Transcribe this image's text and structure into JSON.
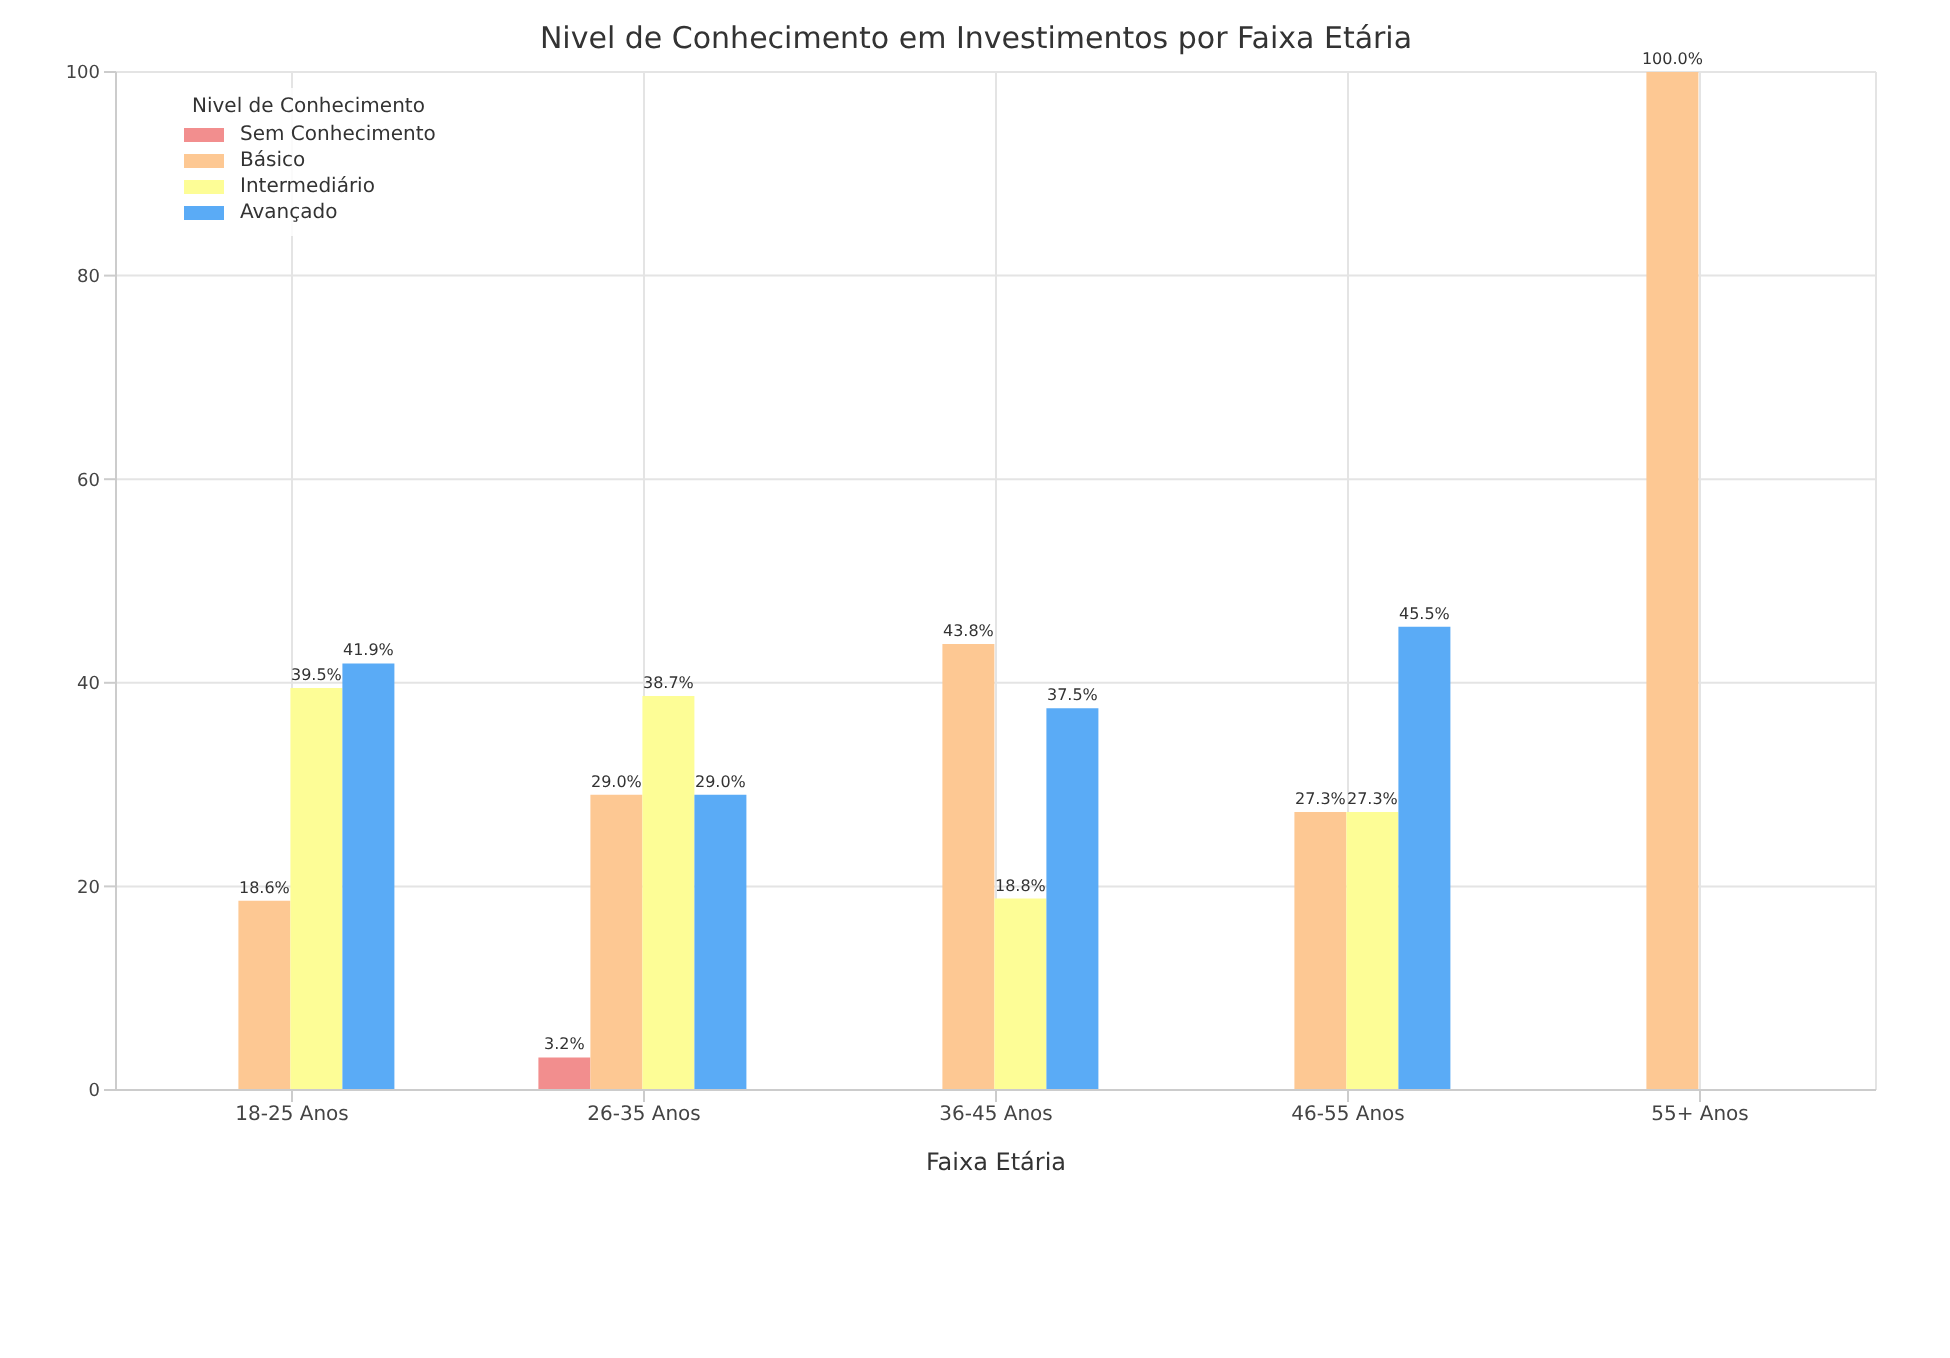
{
  "chart_data": {
    "type": "bar",
    "title": "Nivel de Conhecimento em Investimentos por Faixa Etária",
    "xlabel": "Faixa Etária",
    "legend_title": "Nivel de Conhecimento",
    "categories": [
      "18-25 Anos",
      "26-35 Anos",
      "36-45 Anos",
      "46-55 Anos",
      "55+ Anos"
    ],
    "series": [
      {
        "name": "Sem Conhecimento",
        "color": "#f28e8e",
        "values": [
          0,
          3.2,
          0,
          0,
          0
        ],
        "value_labels": [
          null,
          "3.2%",
          null,
          null,
          null
        ]
      },
      {
        "name": "Básico",
        "color": "#fdc893",
        "values": [
          18.6,
          29.0,
          43.8,
          27.3,
          100.0
        ],
        "value_labels": [
          "18.6%",
          "29.0%",
          "43.8%",
          "27.3%",
          "100.0%"
        ]
      },
      {
        "name": "Intermediário",
        "color": "#fdfd96",
        "values": [
          39.5,
          38.7,
          18.8,
          27.3,
          0
        ],
        "value_labels": [
          "39.5%",
          "38.7%",
          "18.8%",
          "27.3%",
          null
        ]
      },
      {
        "name": "Avançado",
        "color": "#5aabf6",
        "values": [
          41.9,
          29.0,
          37.5,
          45.5,
          0
        ],
        "value_labels": [
          "41.9%",
          "29.0%",
          "37.5%",
          "45.5%",
          null
        ]
      }
    ],
    "ylim": [
      0,
      100
    ],
    "yticks": [
      0,
      20,
      40,
      60,
      80,
      100
    ],
    "grid": true,
    "legend": "top left"
  }
}
